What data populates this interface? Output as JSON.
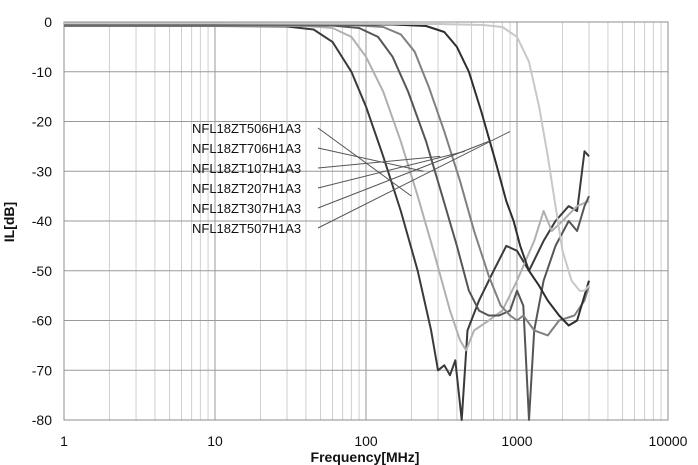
{
  "chart_data": {
    "type": "line",
    "title": "",
    "xlabel": "Frequency[MHz]",
    "ylabel": "IL[dB]",
    "x_scale": "log",
    "xlim": [
      1,
      10000
    ],
    "ylim": [
      -80,
      0
    ],
    "x_ticks": [
      1,
      10,
      100,
      1000,
      10000
    ],
    "x_tick_labels": [
      "1",
      "10",
      "100",
      "1000",
      "10000"
    ],
    "y_ticks": [
      0,
      -10,
      -20,
      -30,
      -40,
      -50,
      -60,
      -70,
      -80
    ],
    "y_tick_labels": [
      "0",
      "-10",
      "-20",
      "-30",
      "-40",
      "-50",
      "-60",
      "-70",
      "-80"
    ],
    "grid": true,
    "legend_placement": "middle-left",
    "series": [
      {
        "name": "NFL18ZT506H1A3",
        "color": "#3a3a3a",
        "points": [
          [
            1,
            -0.8
          ],
          [
            10,
            -0.8
          ],
          [
            30,
            -0.9
          ],
          [
            45,
            -1.5
          ],
          [
            60,
            -4
          ],
          [
            80,
            -10
          ],
          [
            100,
            -17
          ],
          [
            130,
            -27
          ],
          [
            170,
            -38
          ],
          [
            220,
            -50
          ],
          [
            270,
            -62
          ],
          [
            300,
            -70
          ],
          [
            330,
            -69
          ],
          [
            360,
            -71
          ],
          [
            390,
            -68
          ],
          [
            430,
            -80
          ],
          [
            470,
            -62
          ],
          [
            560,
            -56
          ],
          [
            700,
            -50
          ],
          [
            850,
            -45
          ],
          [
            1000,
            -46
          ],
          [
            1200,
            -50
          ],
          [
            1500,
            -44
          ],
          [
            1800,
            -40
          ],
          [
            2200,
            -37
          ],
          [
            2500,
            -38
          ],
          [
            2800,
            -26
          ],
          [
            3000,
            -27
          ]
        ]
      },
      {
        "name": "NFL18ZT706H1A3",
        "color": "#b0b0b0",
        "points": [
          [
            1,
            -0.7
          ],
          [
            10,
            -0.7
          ],
          [
            40,
            -0.8
          ],
          [
            60,
            -1.2
          ],
          [
            80,
            -3
          ],
          [
            100,
            -7
          ],
          [
            130,
            -14
          ],
          [
            170,
            -24
          ],
          [
            220,
            -35
          ],
          [
            280,
            -46
          ],
          [
            360,
            -58
          ],
          [
            420,
            -64
          ],
          [
            460,
            -66
          ],
          [
            520,
            -62
          ],
          [
            650,
            -60
          ],
          [
            800,
            -58
          ],
          [
            1000,
            -52
          ],
          [
            1300,
            -44
          ],
          [
            1500,
            -38
          ],
          [
            1700,
            -42
          ],
          [
            2000,
            -40
          ],
          [
            2500,
            -37
          ],
          [
            3000,
            -36
          ]
        ]
      },
      {
        "name": "NFL18ZT107H1A3",
        "color": "#555555",
        "points": [
          [
            1,
            -0.6
          ],
          [
            10,
            -0.6
          ],
          [
            60,
            -0.7
          ],
          [
            90,
            -1.2
          ],
          [
            120,
            -3
          ],
          [
            150,
            -7
          ],
          [
            190,
            -14
          ],
          [
            250,
            -24
          ],
          [
            320,
            -35
          ],
          [
            400,
            -45
          ],
          [
            480,
            -54
          ],
          [
            560,
            -58
          ],
          [
            650,
            -59
          ],
          [
            760,
            -59
          ],
          [
            900,
            -58
          ],
          [
            1000,
            -54
          ],
          [
            1100,
            -57
          ],
          [
            1200,
            -80
          ],
          [
            1300,
            -62
          ],
          [
            1500,
            -52
          ],
          [
            1800,
            -45
          ],
          [
            2200,
            -40
          ],
          [
            2500,
            -42
          ],
          [
            2800,
            -37
          ],
          [
            3000,
            -35
          ]
        ]
      },
      {
        "name": "NFL18ZT207H1A3",
        "color": "#808080",
        "points": [
          [
            1,
            -0.5
          ],
          [
            10,
            -0.5
          ],
          [
            80,
            -0.6
          ],
          [
            130,
            -1
          ],
          [
            170,
            -2.5
          ],
          [
            210,
            -6
          ],
          [
            260,
            -13
          ],
          [
            330,
            -22
          ],
          [
            420,
            -32
          ],
          [
            520,
            -42
          ],
          [
            650,
            -51
          ],
          [
            780,
            -57
          ],
          [
            900,
            -59
          ],
          [
            1000,
            -60
          ],
          [
            1100,
            -59
          ],
          [
            1300,
            -62
          ],
          [
            1600,
            -63
          ],
          [
            1900,
            -60
          ],
          [
            2400,
            -59
          ],
          [
            2800,
            -56
          ],
          [
            3000,
            -53
          ]
        ]
      },
      {
        "name": "NFL18ZT307H1A3",
        "color": "#2e2e2e",
        "points": [
          [
            1,
            -0.4
          ],
          [
            10,
            -0.4
          ],
          [
            150,
            -0.5
          ],
          [
            250,
            -0.8
          ],
          [
            330,
            -2
          ],
          [
            400,
            -5
          ],
          [
            480,
            -10
          ],
          [
            580,
            -18
          ],
          [
            720,
            -28
          ],
          [
            850,
            -36
          ],
          [
            950,
            -40
          ],
          [
            1050,
            -45
          ],
          [
            1200,
            -50
          ],
          [
            1400,
            -53
          ],
          [
            1600,
            -56
          ],
          [
            1900,
            -59
          ],
          [
            2200,
            -61
          ],
          [
            2500,
            -60
          ],
          [
            2800,
            -55
          ],
          [
            3000,
            -52
          ]
        ]
      },
      {
        "name": "NFL18ZT507H1A3",
        "color": "#c8c8c8",
        "points": [
          [
            1,
            -0.3
          ],
          [
            10,
            -0.3
          ],
          [
            300,
            -0.4
          ],
          [
            600,
            -0.6
          ],
          [
            800,
            -1
          ],
          [
            1000,
            -3
          ],
          [
            1200,
            -8
          ],
          [
            1400,
            -17
          ],
          [
            1600,
            -27
          ],
          [
            1800,
            -37
          ],
          [
            2000,
            -46
          ],
          [
            2300,
            -52
          ],
          [
            2600,
            -54
          ],
          [
            2800,
            -54
          ],
          [
            3000,
            -53
          ]
        ]
      }
    ],
    "legend_targets": [
      [
        200,
        -35
      ],
      [
        240,
        -30
      ],
      [
        310,
        -27
      ],
      [
        450,
        -26
      ],
      [
        650,
        -24
      ],
      [
        900,
        -22
      ]
    ]
  }
}
